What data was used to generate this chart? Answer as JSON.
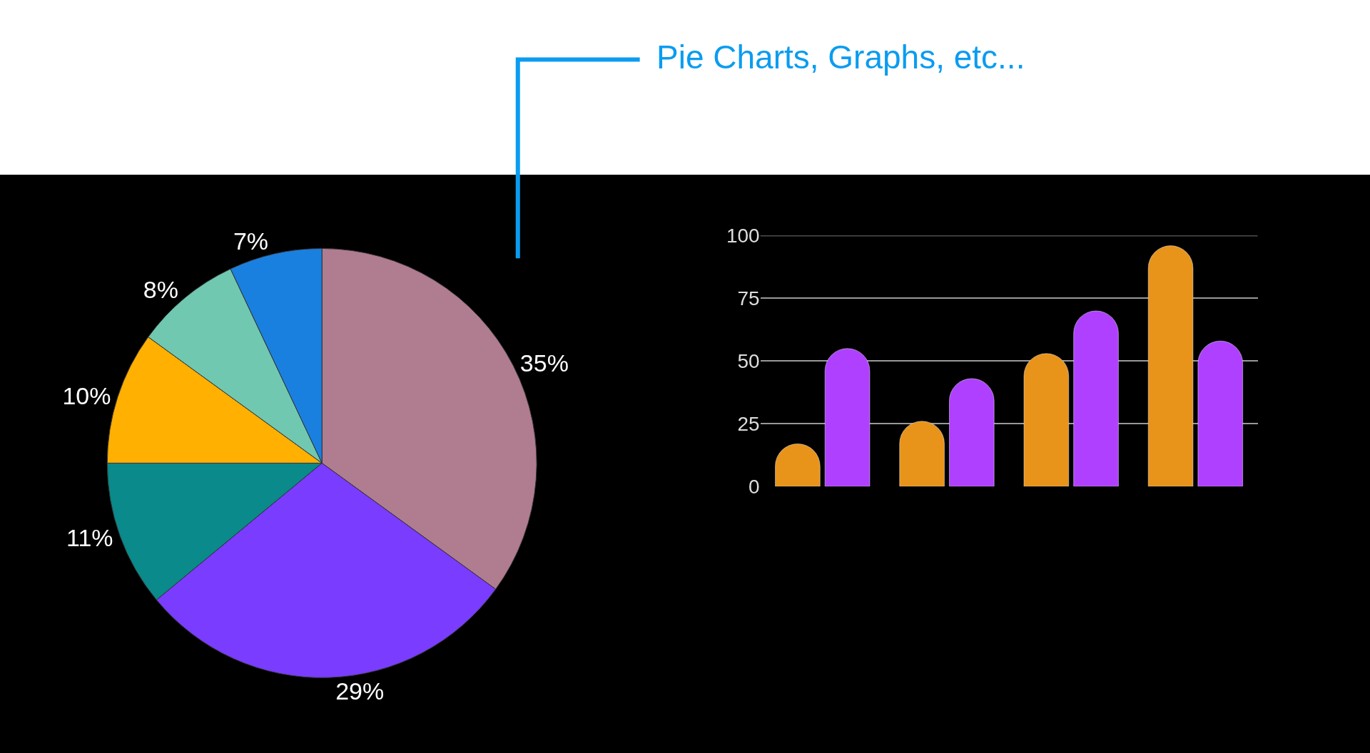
{
  "chart_data": [
    {
      "type": "pie",
      "categories": [
        null,
        null,
        null,
        null,
        null,
        null
      ],
      "values": [
        35,
        29,
        11,
        10,
        8,
        7
      ],
      "value_labels": [
        "35%",
        "29%",
        "11%",
        "10%",
        "8%",
        "7%"
      ],
      "colors": [
        "#b07c90",
        "#7a3cff",
        "#0a8a8a",
        "#ffb000",
        "#70c8b0",
        "#1a80e0"
      ],
      "annotations": [
        "Pie Charts, Graphs, etc..."
      ]
    },
    {
      "type": "bar",
      "categories": [
        null,
        null,
        null,
        null
      ],
      "series": [
        {
          "color": "#e8941a",
          "values": [
            17,
            26,
            53,
            96
          ]
        },
        {
          "color": "#b040ff",
          "values": [
            55,
            43,
            70,
            58
          ]
        }
      ],
      "ylim": [
        0,
        100
      ],
      "yticks": [
        0,
        25,
        50,
        75,
        100
      ],
      "grid": "y"
    }
  ]
}
